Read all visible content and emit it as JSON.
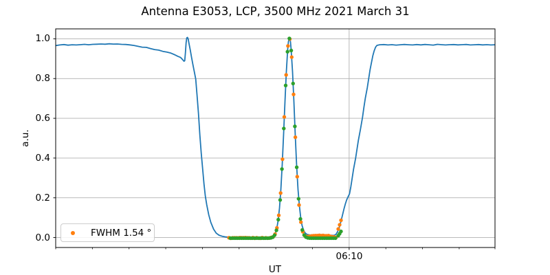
{
  "chart_data": {
    "type": "line+scatter",
    "title": "Antenna E3053, LCP, 3500 MHz 2021 March 31",
    "xlabel": "UT",
    "ylabel": "a.u.",
    "ylim": [
      -0.05,
      1.05
    ],
    "grid_color": "#b0b0b0",
    "background": "#ffffff",
    "yticks": [
      {
        "value": 0.0,
        "label": "0.0"
      },
      {
        "value": 0.2,
        "label": "0.2"
      },
      {
        "value": 0.4,
        "label": "0.4"
      },
      {
        "value": 0.6,
        "label": "0.6"
      },
      {
        "value": 0.8,
        "label": "0.8"
      },
      {
        "value": 1.0,
        "label": "1.0"
      }
    ],
    "xaxis": {
      "major_label": "06:10",
      "major_frac": 0.668,
      "minor_fracs": [
        0.0,
        0.0835,
        0.167,
        0.2505,
        0.334,
        0.4175,
        0.501,
        0.5845,
        0.7515,
        0.835,
        0.9185,
        1.0
      ]
    },
    "legend": {
      "label": "FWHM 1.54 °",
      "marker_color": "#ff7f0e",
      "location": "lower left"
    },
    "line_series": {
      "name": "antenna-signal",
      "color": "#1f77b4",
      "width": 1.8,
      "points": [
        [
          0.0,
          0.966
        ],
        [
          0.0094,
          0.969
        ],
        [
          0.0188,
          0.971
        ],
        [
          0.0281,
          0.968
        ],
        [
          0.0375,
          0.97
        ],
        [
          0.0469,
          0.969
        ],
        [
          0.0563,
          0.9705
        ],
        [
          0.0656,
          0.972
        ],
        [
          0.075,
          0.97
        ],
        [
          0.0844,
          0.972
        ],
        [
          0.0938,
          0.973
        ],
        [
          0.1031,
          0.974
        ],
        [
          0.1125,
          0.973
        ],
        [
          0.1219,
          0.975
        ],
        [
          0.1313,
          0.9735
        ],
        [
          0.1406,
          0.974
        ],
        [
          0.15,
          0.972
        ],
        [
          0.1594,
          0.9715
        ],
        [
          0.1688,
          0.9695
        ],
        [
          0.1781,
          0.9665
        ],
        [
          0.1875,
          0.962
        ],
        [
          0.1969,
          0.958
        ],
        [
          0.2063,
          0.957
        ],
        [
          0.2156,
          0.951
        ],
        [
          0.225,
          0.946
        ],
        [
          0.2344,
          0.943
        ],
        [
          0.2438,
          0.937
        ],
        [
          0.2531,
          0.933
        ],
        [
          0.2625,
          0.928
        ],
        [
          0.2719,
          0.919
        ],
        [
          0.2781,
          0.912
        ],
        [
          0.2844,
          0.906
        ],
        [
          0.2891,
          0.895
        ],
        [
          0.2922,
          0.887
        ],
        [
          0.2938,
          0.89
        ],
        [
          0.2953,
          0.93
        ],
        [
          0.2969,
          0.98
        ],
        [
          0.2984,
          1.005
        ],
        [
          0.3,
          1.007
        ],
        [
          0.3016,
          1.0
        ],
        [
          0.3031,
          0.98
        ],
        [
          0.3063,
          0.945
        ],
        [
          0.3094,
          0.905
        ],
        [
          0.3125,
          0.868
        ],
        [
          0.3156,
          0.833
        ],
        [
          0.3188,
          0.797
        ],
        [
          0.3219,
          0.712
        ],
        [
          0.325,
          0.623
        ],
        [
          0.3281,
          0.516
        ],
        [
          0.3313,
          0.425
        ],
        [
          0.3344,
          0.348
        ],
        [
          0.3375,
          0.27
        ],
        [
          0.3406,
          0.21
        ],
        [
          0.3438,
          0.165
        ],
        [
          0.3484,
          0.115
        ],
        [
          0.3531,
          0.077
        ],
        [
          0.3594,
          0.042
        ],
        [
          0.3656,
          0.022
        ],
        [
          0.3719,
          0.012
        ],
        [
          0.3797,
          0.006
        ],
        [
          0.3875,
          0.003
        ],
        [
          0.3984,
          0.001
        ],
        [
          0.4141,
          0.0005
        ],
        [
          0.4297,
          0.0005
        ],
        [
          0.4453,
          0.0005
        ],
        [
          0.4609,
          0.0005
        ],
        [
          0.4766,
          0.0008
        ],
        [
          0.4875,
          0.0015
        ],
        [
          0.4906,
          0.002
        ],
        [
          0.4938,
          0.0045
        ],
        [
          0.4969,
          0.01
        ],
        [
          0.5,
          0.0215
        ],
        [
          0.5031,
          0.0445
        ],
        [
          0.5063,
          0.084
        ],
        [
          0.5094,
          0.147
        ],
        [
          0.5125,
          0.241
        ],
        [
          0.5156,
          0.367
        ],
        [
          0.5188,
          0.52
        ],
        [
          0.5219,
          0.683
        ],
        [
          0.525,
          0.835
        ],
        [
          0.5281,
          0.949
        ],
        [
          0.5297,
          0.985
        ],
        [
          0.5313,
          1.003
        ],
        [
          0.5328,
          1.003
        ],
        [
          0.5344,
          0.985
        ],
        [
          0.5359,
          0.949
        ],
        [
          0.5391,
          0.835
        ],
        [
          0.5422,
          0.683
        ],
        [
          0.5453,
          0.52
        ],
        [
          0.5484,
          0.367
        ],
        [
          0.5516,
          0.241
        ],
        [
          0.5547,
          0.16
        ],
        [
          0.5578,
          0.1
        ],
        [
          0.5609,
          0.06
        ],
        [
          0.5641,
          0.038
        ],
        [
          0.5672,
          0.025
        ],
        [
          0.5719,
          0.016
        ],
        [
          0.5781,
          0.013
        ],
        [
          0.5875,
          0.013
        ],
        [
          0.6,
          0.015
        ],
        [
          0.6125,
          0.014
        ],
        [
          0.625,
          0.012
        ],
        [
          0.6328,
          0.011
        ],
        [
          0.6375,
          0.015
        ],
        [
          0.6406,
          0.025
        ],
        [
          0.6438,
          0.04
        ],
        [
          0.6469,
          0.062
        ],
        [
          0.65,
          0.088
        ],
        [
          0.6531,
          0.115
        ],
        [
          0.6563,
          0.145
        ],
        [
          0.6594,
          0.17
        ],
        [
          0.6625,
          0.19
        ],
        [
          0.6656,
          0.205
        ],
        [
          0.6688,
          0.22
        ],
        [
          0.6719,
          0.255
        ],
        [
          0.675,
          0.3
        ],
        [
          0.6781,
          0.345
        ],
        [
          0.6828,
          0.4
        ],
        [
          0.6859,
          0.445
        ],
        [
          0.6891,
          0.49
        ],
        [
          0.6938,
          0.545
        ],
        [
          0.6984,
          0.605
        ],
        [
          0.7016,
          0.655
        ],
        [
          0.7047,
          0.7
        ],
        [
          0.7094,
          0.755
        ],
        [
          0.7125,
          0.8
        ],
        [
          0.7156,
          0.845
        ],
        [
          0.7188,
          0.88
        ],
        [
          0.7219,
          0.915
        ],
        [
          0.725,
          0.94
        ],
        [
          0.7281,
          0.958
        ],
        [
          0.7313,
          0.967
        ],
        [
          0.7375,
          0.97
        ],
        [
          0.7469,
          0.971
        ],
        [
          0.7563,
          0.969
        ],
        [
          0.7656,
          0.9705
        ],
        [
          0.775,
          0.9685
        ],
        [
          0.7844,
          0.97
        ],
        [
          0.7938,
          0.9715
        ],
        [
          0.8031,
          0.97
        ],
        [
          0.8125,
          0.969
        ],
        [
          0.8219,
          0.971
        ],
        [
          0.8313,
          0.9695
        ],
        [
          0.8406,
          0.9715
        ],
        [
          0.85,
          0.97
        ],
        [
          0.8594,
          0.9685
        ],
        [
          0.8688,
          0.972
        ],
        [
          0.8781,
          0.9705
        ],
        [
          0.8875,
          0.969
        ],
        [
          0.8969,
          0.9705
        ],
        [
          0.9063,
          0.971
        ],
        [
          0.9156,
          0.9695
        ],
        [
          0.925,
          0.9705
        ],
        [
          0.9344,
          0.9715
        ],
        [
          0.9438,
          0.969
        ],
        [
          0.9531,
          0.97
        ],
        [
          0.9625,
          0.971
        ],
        [
          0.9719,
          0.9695
        ],
        [
          0.9813,
          0.9705
        ],
        [
          0.9906,
          0.969
        ],
        [
          1.0,
          0.97
        ]
      ]
    },
    "scatter_series": [
      {
        "name": "scan-data",
        "color": "#ff7f0e",
        "marker_radius": 2.7,
        "start": 0.3944,
        "end": 0.6401,
        "step": 0.0042,
        "gauss": {
          "center": 0.532,
          "sigma": 0.0116,
          "amp": 1.005
        },
        "offset": -0.002,
        "noise": 0.0015,
        "bump": {
          "start": 0.5665,
          "end": 0.6401,
          "height": 0.013
        },
        "extra_points": [
          [
            0.6432,
            0.043
          ],
          [
            0.6464,
            0.064
          ],
          [
            0.6495,
            0.087
          ]
        ]
      },
      {
        "name": "gaussian-fit",
        "color": "#2ca02c",
        "marker_radius": 2.7,
        "start": 0.3975,
        "end": 0.6401,
        "step": 0.0042,
        "gauss": {
          "center": 0.532,
          "sigma": 0.0116,
          "amp": 1.005
        },
        "offset": -0.003,
        "noise": 0,
        "bump": null,
        "extra_points": [
          [
            0.6432,
            0.01
          ],
          [
            0.6464,
            0.02
          ],
          [
            0.6495,
            0.031
          ]
        ]
      }
    ]
  }
}
